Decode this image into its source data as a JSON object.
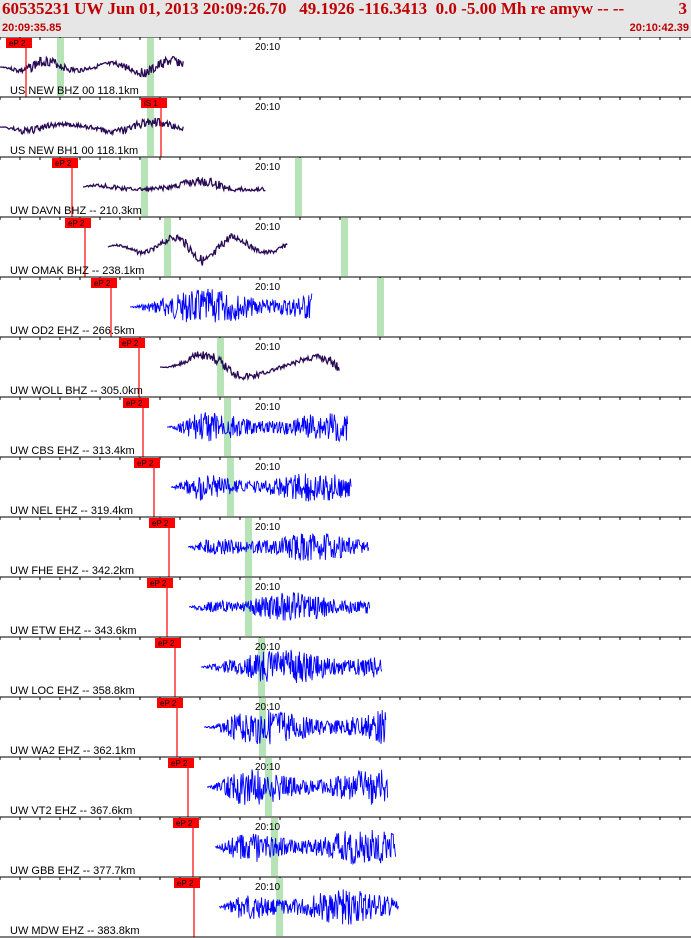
{
  "header": {
    "title": "60535231 UW Jun 01, 2013 20:09:26.70   49.1926 -116.3413  0.0 -5.00 Mh re amyw -- --",
    "count": "3",
    "time_start": "20:09:35.85",
    "time_end": "20:10:42.39"
  },
  "colors": {
    "header_bg": "#e6e6e6",
    "header_text": "#c00000",
    "broadband_trace": "#2a0a55",
    "short_period_trace": "#0000ff",
    "pick_box": "#ff0000",
    "marker_band": "#b7e4b7",
    "separator": "#000000"
  },
  "chart_data": {
    "type": "line",
    "time_range": [
      "20:09:35.85",
      "20:10:42.39"
    ],
    "minute_label": "20:10",
    "pick_label": "eP 2",
    "traces": [
      {
        "station": "US NEW BHZ 00 118.1km",
        "kind": "broadband",
        "pick_label": "eP 2",
        "pick_s": 0.0,
        "green_s": [
          6.0,
          15.0
        ],
        "start_s": 0.0,
        "end_s": 18.4,
        "amp": 0.5
      },
      {
        "station": "US NEW BH1 00 118.1km",
        "kind": "broadband",
        "pick_label": "iS 1",
        "pick_s": 13.5,
        "green_s": [
          15.0
        ],
        "start_s": 0.0,
        "end_s": 18.4,
        "amp": 0.45
      },
      {
        "station": "UW DAVN BHZ -- 210.3km",
        "kind": "broadband",
        "pick_label": "eP 2",
        "pick_s": 4.6,
        "green_s": [
          14.4,
          29.8
        ],
        "start_s": 8.3,
        "end_s": 26.6,
        "amp": 0.45
      },
      {
        "station": "UW OMAK BHZ -- 238.1km",
        "kind": "broadband",
        "pick_label": "eP 2",
        "pick_s": 5.9,
        "green_s": [
          16.7,
          34.4
        ],
        "start_s": 10.8,
        "end_s": 28.8,
        "amp": 0.5
      },
      {
        "station": "UW OD2 EHZ -- 266.5km",
        "kind": "short_period",
        "pick_label": "eP 2",
        "pick_s": 8.5,
        "green_s": [
          38.0
        ],
        "start_s": 13.0,
        "end_s": 31.2,
        "amp": 0.55
      },
      {
        "station": "UW WOLL BHZ -- 305.0km",
        "kind": "broadband",
        "pick_label": "eP 2",
        "pick_s": 11.3,
        "green_s": [
          22.0
        ],
        "start_s": 16.0,
        "end_s": 34.0,
        "amp": 0.5
      },
      {
        "station": "UW CBS EHZ -- 313.4km",
        "kind": "short_period",
        "pick_label": "eP 2",
        "pick_s": 11.7,
        "green_s": [
          22.7
        ],
        "start_s": 16.7,
        "end_s": 34.8,
        "amp": 0.45
      },
      {
        "station": "UW NEL EHZ -- 319.4km",
        "kind": "short_period",
        "pick_label": "eP 2",
        "pick_s": 12.8,
        "green_s": [
          23.0
        ],
        "start_s": 17.1,
        "end_s": 35.2,
        "amp": 0.45
      },
      {
        "station": "UW FHE EHZ -- 342.2km",
        "kind": "short_period",
        "pick_label": "eP 2",
        "pick_s": 14.3,
        "green_s": [
          24.8
        ],
        "start_s": 18.8,
        "end_s": 36.9,
        "amp": 0.45
      },
      {
        "station": "UW ETW EHZ -- 343.6km",
        "kind": "short_period",
        "pick_label": "eP 2",
        "pick_s": 14.1,
        "green_s": [
          24.8
        ],
        "start_s": 18.9,
        "end_s": 37.0,
        "amp": 0.45
      },
      {
        "station": "UW LOC EHZ -- 358.8km",
        "kind": "short_period",
        "pick_label": "eP 2",
        "pick_s": 14.9,
        "green_s": [
          26.1
        ],
        "start_s": 20.1,
        "end_s": 38.2,
        "amp": 0.55
      },
      {
        "station": "UW WA2 EHZ -- 362.1km",
        "kind": "short_period",
        "pick_label": "eP 2",
        "pick_s": 15.1,
        "green_s": [
          26.2
        ],
        "start_s": 20.4,
        "end_s": 38.6,
        "amp": 0.55
      },
      {
        "station": "UW VT2 EHZ -- 367.6km",
        "kind": "short_period",
        "pick_label": "eP 2",
        "pick_s": 16.2,
        "green_s": [
          26.8
        ],
        "start_s": 20.7,
        "end_s": 38.8,
        "amp": 0.55
      },
      {
        "station": "UW GBB EHZ -- 377.7km",
        "kind": "short_period",
        "pick_label": "eP 2",
        "pick_s": 16.7,
        "green_s": [
          27.4
        ],
        "start_s": 21.5,
        "end_s": 39.6,
        "amp": 0.55
      },
      {
        "station": "UW MDW EHZ -- 383.8km",
        "kind": "short_period",
        "pick_label": "eP 2",
        "pick_s": 16.8,
        "green_s": [
          27.9
        ],
        "start_s": 21.9,
        "end_s": 39.9,
        "amp": 0.55
      }
    ]
  }
}
